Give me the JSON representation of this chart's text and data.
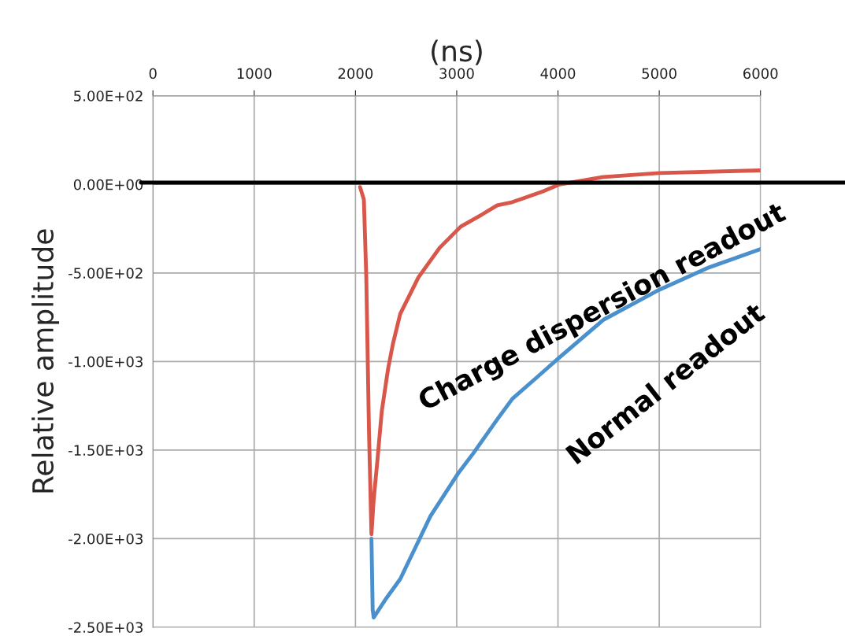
{
  "chart_data": {
    "type": "line",
    "xlabel": "(ns)",
    "ylabel": "Relative amplitude",
    "series": [
      {
        "name": "Charge dispersion readout",
        "color": "#d9574a",
        "x": [
          2045,
          2083,
          2107,
          2133,
          2158,
          2180,
          2218,
          2260,
          2323,
          2370,
          2442,
          2622,
          2831,
          3040,
          3250,
          3400,
          3550,
          3850,
          4015,
          4450,
          5000,
          6000
        ],
        "values": [
          -15,
          -85,
          -525,
          -1380,
          -1975,
          -1780,
          -1550,
          -1280,
          -1038,
          -900,
          -731,
          -525,
          -358,
          -238,
          -170,
          -118,
          -100,
          -40,
          0,
          42,
          64,
          79
        ]
      },
      {
        "name": "Normal readout",
        "color": "#4a90cc",
        "x": [
          2158,
          2170,
          2180,
          2300,
          2442,
          2600,
          2740,
          3012,
          3160,
          3400,
          3550,
          3800,
          4008,
          4450,
          5000,
          5490,
          6000
        ],
        "values": [
          -2000,
          -2400,
          -2445,
          -2340,
          -2228,
          -2040,
          -1873,
          -1633,
          -1521,
          -1327,
          -1210,
          -1085,
          -980,
          -764,
          -595,
          -469,
          -365
        ]
      }
    ],
    "xlim": [
      0,
      6000
    ],
    "xticks": [
      0,
      1000,
      2000,
      3000,
      4000,
      5000,
      6000
    ],
    "ylim": [
      -2500,
      500
    ],
    "yticks": [
      {
        "value": 500,
        "label": "5.00E+02"
      },
      {
        "value": 0,
        "label": "0.00E+00"
      },
      {
        "value": -500,
        "label": "-5.00E+02"
      },
      {
        "value": -1000,
        "label": "-1.00E+03"
      },
      {
        "value": -1500,
        "label": "-1.50E+03"
      },
      {
        "value": -2000,
        "label": "-2.00E+03"
      },
      {
        "value": -2500,
        "label": "-2.50E+03"
      }
    ],
    "ref_lines": [
      {
        "axis": "y",
        "value": 10,
        "color": "#000000"
      }
    ],
    "grid": true,
    "legend": false,
    "marker": "none",
    "line_style": "solid"
  }
}
